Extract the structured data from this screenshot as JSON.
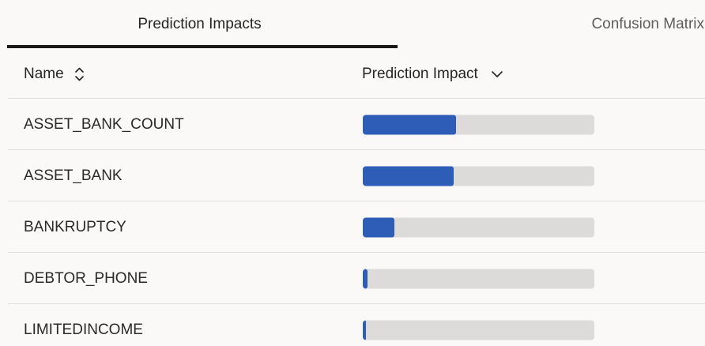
{
  "tabs": [
    {
      "label": "Prediction Impacts",
      "active": true
    },
    {
      "label": "Confusion Matrix",
      "active": false
    }
  ],
  "table": {
    "columns": [
      {
        "label": "Name",
        "icon": "sort-up-down-icon"
      },
      {
        "label": "Prediction Impact",
        "icon": "chevron-down-icon"
      }
    ],
    "rows": [
      {
        "name": "ASSET_BANK_COUNT",
        "value_pct": 40.3
      },
      {
        "name": "ASSET_BANK",
        "value_pct": 39.2
      },
      {
        "name": "BANKRUPTCY",
        "value_pct": 13.5
      },
      {
        "name": "DEBTOR_PHONE",
        "value_pct": 2.2
      },
      {
        "name": "LIMITEDINCOME",
        "value_pct": 1.4
      }
    ]
  },
  "chart_data": {
    "type": "bar",
    "title": "Prediction Impacts",
    "categories": [
      "ASSET_BANK_COUNT",
      "ASSET_BANK",
      "BANKRUPTCY",
      "DEBTOR_PHONE",
      "LIMITEDINCOME"
    ],
    "values": [
      40.3,
      39.2,
      13.5,
      2.2,
      1.4
    ],
    "xlabel": "Prediction Impact",
    "ylabel": "Name",
    "xlim": [
      0,
      100
    ],
    "orientation": "horizontal",
    "legend": "none"
  },
  "colors": {
    "background": "#faf9f7",
    "bar_fill": "#2e5db8",
    "bar_track": "#dcdbd9",
    "tab_underline": "#1b1a19",
    "divider": "#e1dfdd",
    "text_primary": "#252423",
    "text_secondary": "#605e5c"
  }
}
